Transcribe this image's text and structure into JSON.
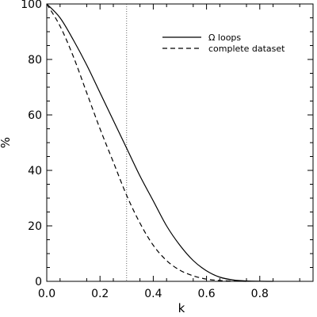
{
  "chart_data": {
    "type": "line",
    "title": "",
    "xlabel": "k",
    "ylabel": "%",
    "xlim": [
      0.0,
      1.0
    ],
    "ylim": [
      0,
      100
    ],
    "xticks": [
      0.0,
      0.2,
      0.4,
      0.6,
      0.8
    ],
    "xtick_labels": [
      "0.0",
      "0.2",
      "0.4",
      "0.6",
      "0.8"
    ],
    "yticks": [
      0,
      20,
      40,
      60,
      80,
      100
    ],
    "ytick_labels": [
      "0",
      "20",
      "40",
      "60",
      "80",
      "100"
    ],
    "grid": false,
    "legend_position": "top-right",
    "reference_line": {
      "x": 0.3,
      "style": "dotted"
    },
    "series": [
      {
        "name": "Ω loops",
        "style": "solid",
        "color": "#000000",
        "x": [
          0.0,
          0.05,
          0.1,
          0.15,
          0.2,
          0.25,
          0.3,
          0.35,
          0.4,
          0.45,
          0.5,
          0.55,
          0.6,
          0.65,
          0.7,
          0.75,
          0.8,
          0.85
        ],
        "y": [
          100,
          95,
          87,
          78,
          68,
          58,
          48,
          38,
          29,
          20,
          13,
          7.5,
          3.8,
          1.5,
          0.5,
          0.15,
          0.03,
          0
        ]
      },
      {
        "name": "complete dataset",
        "style": "dashed",
        "color": "#000000",
        "x": [
          0.0,
          0.05,
          0.1,
          0.15,
          0.2,
          0.25,
          0.3,
          0.35,
          0.4,
          0.45,
          0.5,
          0.55,
          0.6,
          0.65,
          0.7,
          0.75
        ],
        "y": [
          100,
          92,
          81,
          68,
          55,
          43,
          31,
          21,
          13,
          7.5,
          4,
          2,
          0.8,
          0.3,
          0.08,
          0
        ]
      }
    ]
  }
}
